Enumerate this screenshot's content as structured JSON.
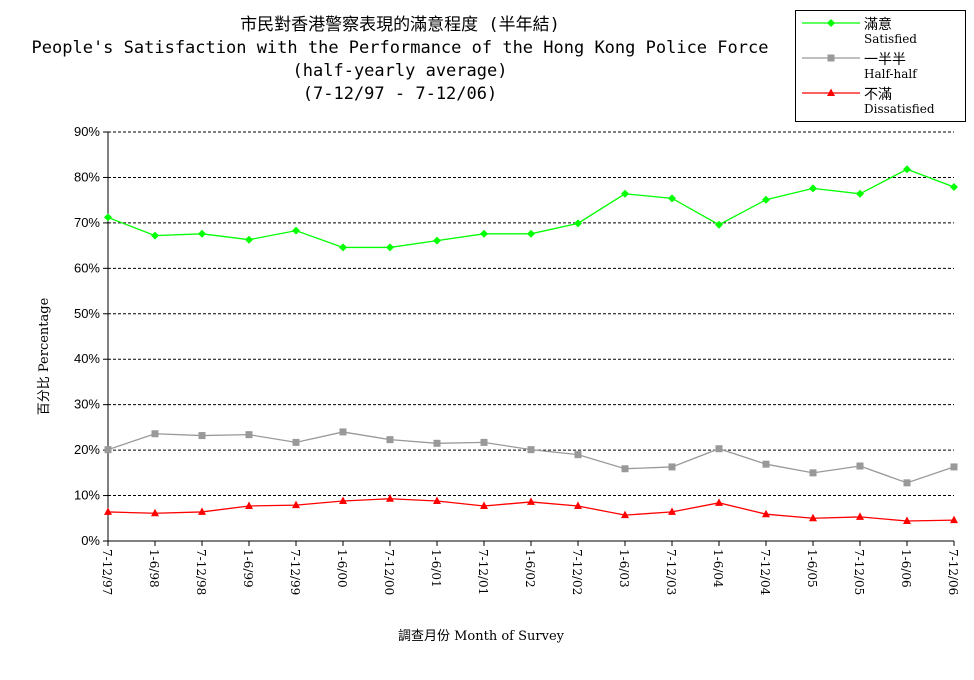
{
  "titles": {
    "line1": "市民對香港警察表現的滿意程度 (半年結)",
    "line2": "People's Satisfaction with the Performance of the Hong Kong Police Force",
    "line3": "(half-yearly average)",
    "line4": "(7-12/97 - 7-12/06)"
  },
  "legend": [
    {
      "name": "滿意",
      "sub": "Satisfied",
      "color": "#00ff00",
      "marker": "diamond"
    },
    {
      "name": "一半半",
      "sub": "Half-half",
      "color": "#999999",
      "marker": "square"
    },
    {
      "name": "不滿",
      "sub": "Dissatisfied",
      "color": "#ff0000",
      "marker": "triangle"
    }
  ],
  "chart_data": {
    "type": "line",
    "ylabel": "百分比 Percentage",
    "xlabel": "調查月份 Month of Survey",
    "ylim": [
      0,
      90
    ],
    "yticks": [
      "0%",
      "10%",
      "20%",
      "30%",
      "40%",
      "50%",
      "60%",
      "70%",
      "80%",
      "90%"
    ],
    "grid": true,
    "legend_position": "top-right",
    "categories": [
      "7-12/97",
      "1-6/98",
      "7-12/98",
      "1-6/99",
      "7-12/99",
      "1-6/00",
      "7-12/00",
      "1-6/01",
      "7-12/01",
      "1-6/02",
      "7-12/02",
      "1-6/03",
      "7-12/03",
      "1-6/04",
      "7-12/04",
      "1-6/05",
      "7-12/05",
      "1-6/06",
      "7-12/06"
    ],
    "series": [
      {
        "name": "滿意 Satisfied",
        "color": "#00ff00",
        "marker": "diamond",
        "values": [
          71.2,
          67.2,
          67.6,
          66.3,
          68.3,
          64.6,
          64.6,
          66.1,
          67.6,
          67.6,
          69.9,
          76.4,
          75.4,
          69.6,
          75.1,
          77.6,
          76.4,
          81.8,
          77.9
        ]
      },
      {
        "name": "一半半 Half-half",
        "color": "#999999",
        "marker": "square",
        "values": [
          20.1,
          23.6,
          23.2,
          23.4,
          21.7,
          24.0,
          22.3,
          21.5,
          21.7,
          20.1,
          19.0,
          15.9,
          16.3,
          20.3,
          16.9,
          15.0,
          16.5,
          12.8,
          16.3
        ]
      },
      {
        "name": "不滿 Dissatisfied",
        "color": "#ff0000",
        "marker": "triangle",
        "values": [
          6.4,
          6.1,
          6.4,
          7.7,
          7.9,
          8.8,
          9.3,
          8.8,
          7.7,
          8.6,
          7.7,
          5.7,
          6.4,
          8.4,
          5.9,
          5.0,
          5.3,
          4.4,
          4.6
        ]
      }
    ]
  }
}
